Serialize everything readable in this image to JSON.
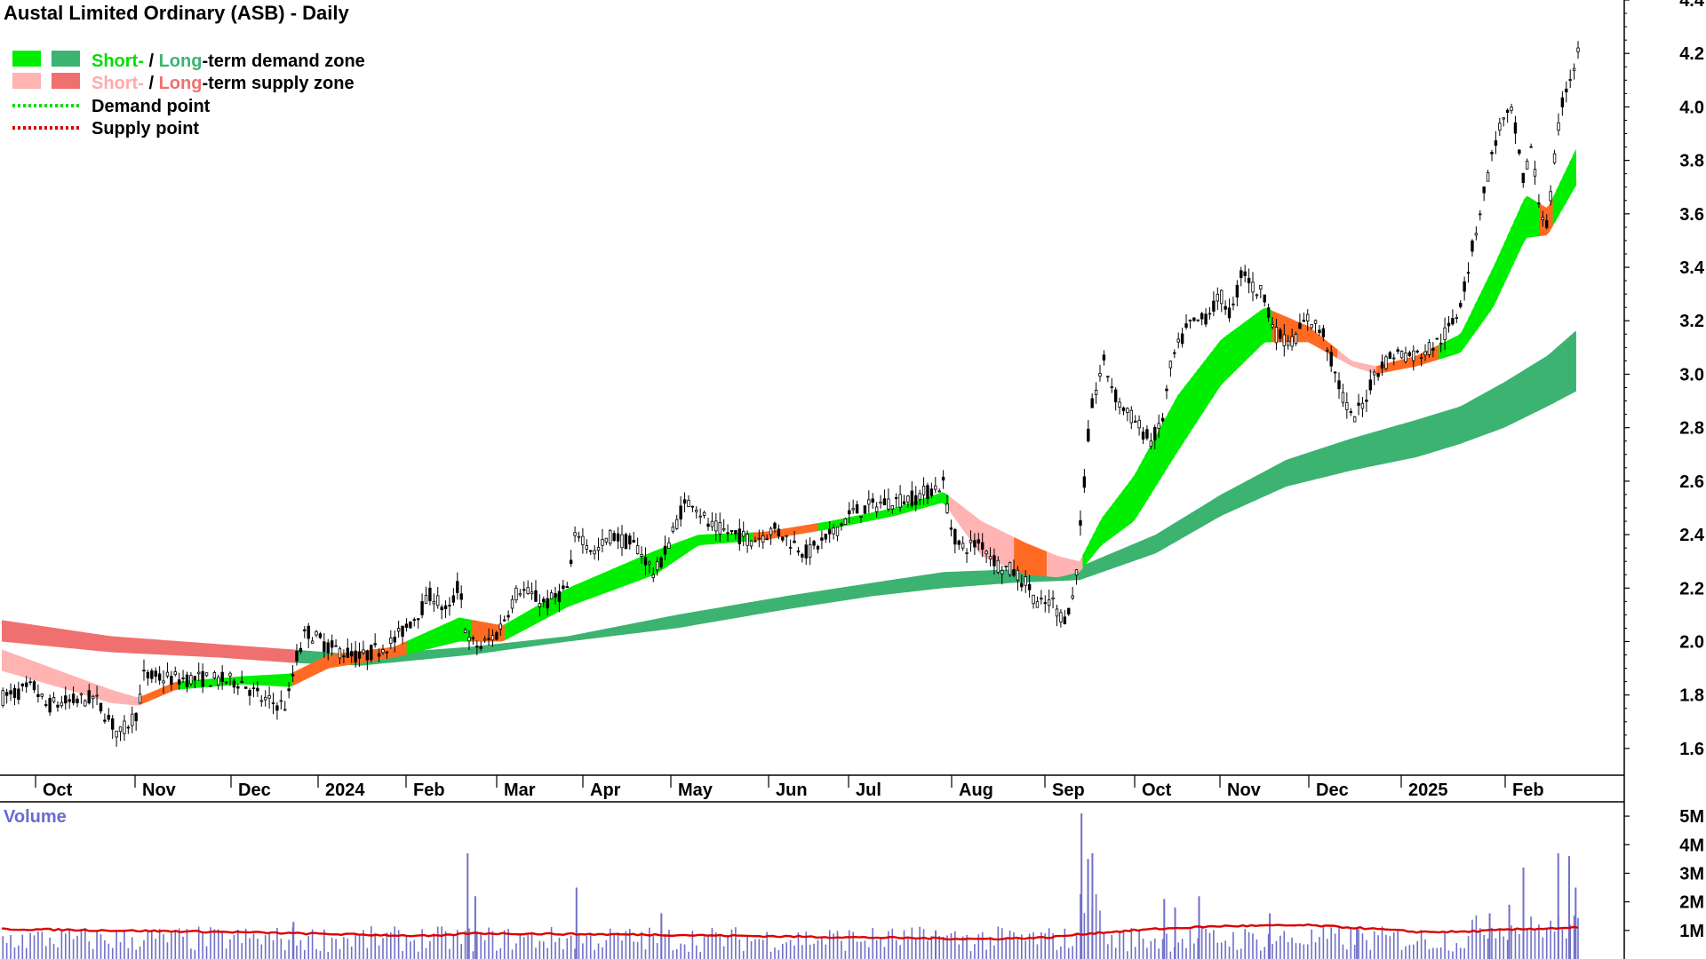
{
  "chart_data": {
    "type": "candlestick",
    "title": "Austal Limited Ordinary (ASB) - Daily",
    "legend": {
      "placement": "top-left",
      "items": [
        {
          "id": "demand-zone",
          "swatches": [
            "#00ee00",
            "#3cb371"
          ],
          "parts": [
            {
              "text": "Short-",
              "color": "#00dd00"
            },
            {
              "text": " / ",
              "color": "#000000"
            },
            {
              "text": "Long",
              "color": "#3cb371"
            },
            {
              "text": "-term demand zone",
              "color": "#000000"
            }
          ]
        },
        {
          "id": "supply-zone",
          "swatches": [
            "#ffb3b3",
            "#f07070"
          ],
          "parts": [
            {
              "text": "Short-",
              "color": "#ffaaaa"
            },
            {
              "text": " / ",
              "color": "#000000"
            },
            {
              "text": "Long",
              "color": "#f07070"
            },
            {
              "text": "-term supply zone",
              "color": "#000000"
            }
          ]
        },
        {
          "id": "demand-point",
          "line_color": "#00dd00",
          "parts": [
            {
              "text": "Demand point",
              "color": "#000000"
            }
          ]
        },
        {
          "id": "supply-point",
          "line_color": "#dd0000",
          "parts": [
            {
              "text": "Supply point",
              "color": "#000000"
            }
          ]
        }
      ]
    },
    "price_axis": {
      "ylim": [
        1.5,
        4.4
      ],
      "ticks": [
        "1.6",
        "1.8",
        "2.0",
        "2.2",
        "2.4",
        "2.6",
        "2.8",
        "3.0",
        "3.2",
        "3.4",
        "3.6",
        "3.8",
        "4.0",
        "4.2",
        "4.4"
      ]
    },
    "time_axis": {
      "ticks": [
        "Oct",
        "Nov",
        "Dec",
        "2024",
        "Feb",
        "Mar",
        "Apr",
        "May",
        "Jun",
        "Jul",
        "Aug",
        "Sep",
        "Oct",
        "Nov",
        "Dec",
        "2025",
        "Feb"
      ]
    },
    "price_path": [
      [
        0,
        1.79
      ],
      [
        30,
        1.83
      ],
      [
        40,
        1.76
      ],
      [
        85,
        1.79
      ],
      [
        108,
        1.65
      ],
      [
        125,
        1.74
      ],
      [
        130,
        1.87
      ],
      [
        160,
        1.86
      ],
      [
        185,
        1.86
      ],
      [
        220,
        1.85
      ],
      [
        240,
        1.78
      ],
      [
        262,
        1.76
      ],
      [
        270,
        1.93
      ],
      [
        280,
        2.04
      ],
      [
        300,
        1.98
      ],
      [
        330,
        1.94
      ],
      [
        360,
        2.0
      ],
      [
        385,
        2.12
      ],
      [
        395,
        2.18
      ],
      [
        410,
        2.1
      ],
      [
        420,
        2.22
      ],
      [
        428,
        2.0
      ],
      [
        440,
        1.98
      ],
      [
        455,
        2.03
      ],
      [
        475,
        2.2
      ],
      [
        500,
        2.14
      ],
      [
        520,
        2.2
      ],
      [
        528,
        2.42
      ],
      [
        545,
        2.33
      ],
      [
        560,
        2.4
      ],
      [
        585,
        2.35
      ],
      [
        600,
        2.25
      ],
      [
        612,
        2.36
      ],
      [
        625,
        2.5
      ],
      [
        635,
        2.53
      ],
      [
        650,
        2.43
      ],
      [
        690,
        2.38
      ],
      [
        710,
        2.42
      ],
      [
        740,
        2.33
      ],
      [
        760,
        2.39
      ],
      [
        780,
        2.48
      ],
      [
        810,
        2.52
      ],
      [
        840,
        2.54
      ],
      [
        865,
        2.59
      ],
      [
        872,
        2.43
      ],
      [
        880,
        2.35
      ],
      [
        900,
        2.37
      ],
      [
        915,
        2.29
      ],
      [
        930,
        2.26
      ],
      [
        945,
        2.2
      ],
      [
        952,
        2.13
      ],
      [
        965,
        2.15
      ],
      [
        975,
        2.08
      ],
      [
        985,
        2.17
      ],
      [
        993,
        2.52
      ],
      [
        1000,
        2.85
      ],
      [
        1012,
        3.05
      ],
      [
        1025,
        2.9
      ],
      [
        1040,
        2.83
      ],
      [
        1055,
        2.75
      ],
      [
        1065,
        2.8
      ],
      [
        1075,
        3.05
      ],
      [
        1090,
        3.18
      ],
      [
        1105,
        3.21
      ],
      [
        1120,
        3.29
      ],
      [
        1130,
        3.22
      ],
      [
        1140,
        3.4
      ],
      [
        1150,
        3.32
      ],
      [
        1160,
        3.3
      ],
      [
        1170,
        3.15
      ],
      [
        1185,
        3.12
      ],
      [
        1200,
        3.21
      ],
      [
        1215,
        3.15
      ],
      [
        1225,
        3.0
      ],
      [
        1240,
        2.83
      ],
      [
        1250,
        2.88
      ],
      [
        1262,
        3.01
      ],
      [
        1280,
        3.08
      ],
      [
        1300,
        3.07
      ],
      [
        1320,
        3.12
      ],
      [
        1335,
        3.2
      ],
      [
        1345,
        3.35
      ],
      [
        1360,
        3.65
      ],
      [
        1375,
        3.92
      ],
      [
        1388,
        3.98
      ],
      [
        1398,
        3.72
      ],
      [
        1405,
        3.85
      ],
      [
        1412,
        3.65
      ],
      [
        1420,
        3.55
      ],
      [
        1428,
        3.85
      ],
      [
        1435,
        4.05
      ],
      [
        1442,
        4.12
      ],
      [
        1448,
        4.2
      ]
    ],
    "long_term_zone": {
      "top": [
        [
          0,
          2.08
        ],
        [
          100,
          2.02
        ],
        [
          200,
          1.99
        ],
        [
          268,
          1.97
        ],
        [
          330,
          1.95
        ],
        [
          430,
          1.98
        ],
        [
          520,
          2.02
        ],
        [
          620,
          2.1
        ],
        [
          720,
          2.17
        ],
        [
          800,
          2.22
        ],
        [
          865,
          2.26
        ],
        [
          930,
          2.27
        ],
        [
          990,
          2.28
        ],
        [
          1060,
          2.4
        ],
        [
          1120,
          2.55
        ],
        [
          1180,
          2.68
        ],
        [
          1240,
          2.76
        ],
        [
          1300,
          2.83
        ],
        [
          1340,
          2.88
        ],
        [
          1380,
          2.97
        ],
        [
          1420,
          3.07
        ],
        [
          1448,
          3.17
        ]
      ],
      "bottom": [
        [
          0,
          2.0
        ],
        [
          100,
          1.96
        ],
        [
          200,
          1.94
        ],
        [
          268,
          1.92
        ],
        [
          330,
          1.91
        ],
        [
          430,
          1.95
        ],
        [
          520,
          2.0
        ],
        [
          620,
          2.05
        ],
        [
          720,
          2.12
        ],
        [
          800,
          2.17
        ],
        [
          865,
          2.2
        ],
        [
          930,
          2.22
        ],
        [
          990,
          2.23
        ],
        [
          1060,
          2.33
        ],
        [
          1120,
          2.47
        ],
        [
          1180,
          2.58
        ],
        [
          1240,
          2.64
        ],
        [
          1300,
          2.69
        ],
        [
          1340,
          2.74
        ],
        [
          1380,
          2.8
        ],
        [
          1420,
          2.88
        ],
        [
          1448,
          2.94
        ]
      ]
    },
    "short_term_zone": {
      "top": [
        [
          0,
          1.97
        ],
        [
          60,
          1.88
        ],
        [
          100,
          1.82
        ],
        [
          125,
          1.79
        ],
        [
          160,
          1.85
        ],
        [
          220,
          1.87
        ],
        [
          265,
          1.88
        ],
        [
          300,
          1.95
        ],
        [
          360,
          1.98
        ],
        [
          420,
          2.09
        ],
        [
          460,
          2.06
        ],
        [
          520,
          2.2
        ],
        [
          560,
          2.27
        ],
        [
          600,
          2.34
        ],
        [
          640,
          2.4
        ],
        [
          700,
          2.41
        ],
        [
          760,
          2.45
        ],
        [
          820,
          2.5
        ],
        [
          865,
          2.56
        ],
        [
          900,
          2.45
        ],
        [
          940,
          2.37
        ],
        [
          970,
          2.32
        ],
        [
          990,
          2.3
        ],
        [
          1010,
          2.46
        ],
        [
          1040,
          2.62
        ],
        [
          1080,
          2.92
        ],
        [
          1120,
          3.13
        ],
        [
          1160,
          3.25
        ],
        [
          1200,
          3.18
        ],
        [
          1240,
          3.05
        ],
        [
          1262,
          3.03
        ],
        [
          1300,
          3.07
        ],
        [
          1340,
          3.15
        ],
        [
          1370,
          3.4
        ],
        [
          1400,
          3.67
        ],
        [
          1420,
          3.62
        ],
        [
          1448,
          3.86
        ]
      ],
      "bottom": [
        [
          0,
          1.89
        ],
        [
          60,
          1.82
        ],
        [
          100,
          1.77
        ],
        [
          125,
          1.76
        ],
        [
          160,
          1.82
        ],
        [
          220,
          1.84
        ],
        [
          265,
          1.83
        ],
        [
          300,
          1.9
        ],
        [
          360,
          1.94
        ],
        [
          420,
          2.0
        ],
        [
          460,
          2.0
        ],
        [
          520,
          2.13
        ],
        [
          560,
          2.19
        ],
        [
          600,
          2.25
        ],
        [
          640,
          2.36
        ],
        [
          700,
          2.38
        ],
        [
          760,
          2.42
        ],
        [
          820,
          2.47
        ],
        [
          865,
          2.52
        ],
        [
          900,
          2.32
        ],
        [
          940,
          2.25
        ],
        [
          970,
          2.24
        ],
        [
          990,
          2.26
        ],
        [
          1010,
          2.36
        ],
        [
          1040,
          2.45
        ],
        [
          1080,
          2.71
        ],
        [
          1120,
          2.96
        ],
        [
          1160,
          3.12
        ],
        [
          1200,
          3.12
        ],
        [
          1240,
          3.03
        ],
        [
          1262,
          3.0
        ],
        [
          1300,
          3.03
        ],
        [
          1340,
          3.08
        ],
        [
          1370,
          3.25
        ],
        [
          1400,
          3.51
        ],
        [
          1420,
          3.52
        ],
        [
          1448,
          3.72
        ]
      ]
    },
    "volume_axis": {
      "title": "Volume",
      "ylim": [
        0,
        5.5
      ],
      "unit": "M",
      "ticks": [
        "1M",
        "2M",
        "3M",
        "4M",
        "5M"
      ]
    },
    "volume_spikes": [
      [
        268,
        1.3
      ],
      [
        428,
        3.7
      ],
      [
        435,
        2.2
      ],
      [
        528,
        2.5
      ],
      [
        606,
        1.6
      ],
      [
        858,
        1.0
      ],
      [
        992,
        5.1
      ],
      [
        998,
        3.5
      ],
      [
        1002,
        3.7
      ],
      [
        1068,
        2.1
      ],
      [
        1078,
        1.8
      ],
      [
        1100,
        2.2
      ],
      [
        1165,
        1.6
      ],
      [
        1245,
        1.1
      ],
      [
        1367,
        1.6
      ],
      [
        1385,
        1.9
      ],
      [
        1398,
        3.2
      ],
      [
        1430,
        3.7
      ],
      [
        1440,
        3.6
      ],
      [
        1446,
        2.5
      ]
    ],
    "volume_average": [
      [
        0,
        1.05
      ],
      [
        200,
        0.95
      ],
      [
        400,
        0.8
      ],
      [
        430,
        0.9
      ],
      [
        600,
        0.85
      ],
      [
        900,
        0.7
      ],
      [
        960,
        0.75
      ],
      [
        1000,
        0.9
      ],
      [
        1060,
        1.05
      ],
      [
        1120,
        1.15
      ],
      [
        1200,
        1.18
      ],
      [
        1250,
        1.08
      ],
      [
        1300,
        0.95
      ],
      [
        1340,
        0.95
      ],
      [
        1400,
        1.05
      ],
      [
        1448,
        1.1
      ]
    ],
    "colors": {
      "up_body": "#ffffff",
      "down_body": "#000000",
      "wick": "#000000",
      "long_zone": "#3cb371",
      "short_demand": "#00ee00",
      "short_supply_dark": "#ff6a22",
      "short_supply_light": "#ffb3b3",
      "long_supply": "#f07070",
      "volume_bar": "#7070c8",
      "volume_avg": "#dd0000"
    }
  }
}
